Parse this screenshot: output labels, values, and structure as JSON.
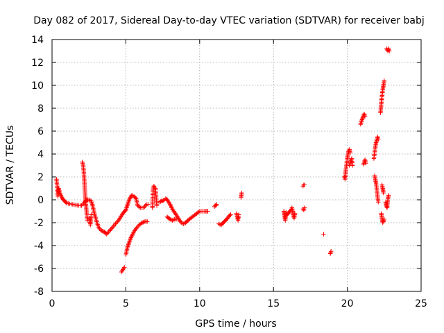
{
  "chart_data": {
    "type": "scatter",
    "title": "Day 082 of 2017, Sidereal Day-to-day VTEC variation (SDTVAR) for receiver babj",
    "xlabel": "GPS time / hours",
    "ylabel": "SDTVAR / TECUs",
    "xlim": [
      0,
      25
    ],
    "ylim": [
      -8,
      14
    ],
    "xticks": [
      0,
      5,
      10,
      15,
      20,
      25
    ],
    "yticks": [
      -8,
      -6,
      -4,
      -2,
      0,
      2,
      4,
      6,
      8,
      10,
      12,
      14
    ],
    "grid": true,
    "marker": "+",
    "series": [
      {
        "name": "SDTVAR",
        "color": "#ff0000",
        "segments": [
          [
            [
              0.3,
              1.8
            ],
            [
              0.35,
              1.2
            ],
            [
              0.4,
              0.3
            ],
            [
              0.45,
              1.0
            ],
            [
              0.5,
              0.7
            ],
            [
              0.6,
              0.4
            ],
            [
              0.7,
              0.1
            ],
            [
              0.85,
              -0.1
            ],
            [
              1.0,
              -0.3
            ],
            [
              1.2,
              -0.35
            ],
            [
              1.4,
              -0.4
            ],
            [
              1.6,
              -0.45
            ],
            [
              1.8,
              -0.5
            ],
            [
              2.0,
              -0.5
            ]
          ],
          [
            [
              2.05,
              3.3
            ],
            [
              2.1,
              3.1
            ],
            [
              2.15,
              2.5
            ],
            [
              2.2,
              1.4
            ],
            [
              2.25,
              0.3
            ],
            [
              2.3,
              -0.5
            ],
            [
              2.35,
              -1.2
            ],
            [
              2.4,
              -1.8
            ]
          ],
          [
            [
              2.1,
              -0.4
            ],
            [
              2.2,
              -0.2
            ],
            [
              2.35,
              0.0
            ],
            [
              2.5,
              0.0
            ],
            [
              2.65,
              -0.1
            ],
            [
              2.75,
              -0.5
            ],
            [
              2.85,
              -1.1
            ],
            [
              3.0,
              -1.8
            ],
            [
              3.15,
              -2.4
            ],
            [
              3.35,
              -2.7
            ],
            [
              3.55,
              -2.8
            ],
            [
              3.7,
              -3.0
            ],
            [
              3.9,
              -2.7
            ],
            [
              4.1,
              -2.4
            ],
            [
              4.3,
              -2.1
            ],
            [
              4.5,
              -1.8
            ],
            [
              4.7,
              -1.4
            ],
            [
              4.85,
              -1.1
            ],
            [
              5.0,
              -0.9
            ],
            [
              5.1,
              -0.5
            ],
            [
              5.2,
              -0.1
            ],
            [
              5.3,
              0.2
            ],
            [
              5.4,
              0.4
            ],
            [
              5.55,
              0.3
            ],
            [
              5.7,
              0.1
            ],
            [
              5.8,
              -0.5
            ],
            [
              6.0,
              -0.7
            ],
            [
              6.2,
              -0.7
            ],
            [
              6.4,
              -0.4
            ],
            [
              6.5,
              -0.4
            ]
          ],
          [
            [
              2.55,
              -1.6
            ],
            [
              2.6,
              -2.2
            ],
            [
              2.65,
              -1.3
            ]
          ],
          [
            [
              4.7,
              -6.3
            ],
            [
              4.8,
              -6.1
            ],
            [
              4.9,
              -5.9
            ]
          ],
          [
            [
              5.0,
              -4.8
            ],
            [
              5.1,
              -4.2
            ],
            [
              5.2,
              -3.8
            ],
            [
              5.35,
              -3.3
            ],
            [
              5.5,
              -2.9
            ],
            [
              5.7,
              -2.5
            ],
            [
              5.9,
              -2.2
            ],
            [
              6.1,
              -2.0
            ],
            [
              6.3,
              -1.9
            ],
            [
              6.45,
              -1.9
            ]
          ],
          [
            [
              6.8,
              -0.7
            ],
            [
              6.85,
              1.1
            ],
            [
              6.9,
              1.2
            ],
            [
              7.0,
              1.0
            ],
            [
              7.1,
              -0.5
            ]
          ],
          [
            [
              7.3,
              -0.2
            ],
            [
              7.4,
              -0.1
            ],
            [
              7.5,
              -0.1
            ],
            [
              7.6,
              0.0
            ]
          ],
          [
            [
              7.7,
              0.1
            ],
            [
              7.8,
              0.0
            ],
            [
              7.9,
              -0.2
            ],
            [
              8.0,
              -0.4
            ],
            [
              8.1,
              -0.7
            ],
            [
              8.2,
              -0.9
            ],
            [
              8.35,
              -1.2
            ],
            [
              8.5,
              -1.5
            ],
            [
              8.6,
              -1.7
            ],
            [
              8.75,
              -2.0
            ],
            [
              8.9,
              -2.1
            ],
            [
              9.05,
              -2.0
            ],
            [
              9.2,
              -1.8
            ],
            [
              9.4,
              -1.6
            ],
            [
              9.6,
              -1.4
            ],
            [
              9.8,
              -1.2
            ],
            [
              10.0,
              -1.0
            ],
            [
              10.2,
              -1.0
            ],
            [
              10.4,
              -1.0
            ],
            [
              10.55,
              -1.0
            ]
          ],
          [
            [
              7.8,
              -1.5
            ],
            [
              7.9,
              -1.6
            ],
            [
              8.0,
              -1.7
            ],
            [
              8.15,
              -1.8
            ],
            [
              8.3,
              -1.7
            ],
            [
              8.45,
              -1.7
            ]
          ],
          [
            [
              11.0,
              -0.6
            ],
            [
              11.05,
              -0.5
            ],
            [
              11.1,
              -0.5
            ],
            [
              11.15,
              -0.4
            ]
          ],
          [
            [
              11.3,
              -2.1
            ],
            [
              11.45,
              -2.2
            ],
            [
              11.6,
              -2.0
            ],
            [
              11.75,
              -1.8
            ],
            [
              11.9,
              -1.6
            ],
            [
              12.0,
              -1.4
            ],
            [
              12.1,
              -1.3
            ]
          ],
          [
            [
              12.5,
              -1.2
            ],
            [
              12.55,
              -1.5
            ],
            [
              12.6,
              -1.8
            ],
            [
              12.65,
              -1.3
            ]
          ],
          [
            [
              12.8,
              0.2
            ],
            [
              12.85,
              0.6
            ]
          ],
          [
            [
              15.7,
              -1.0
            ],
            [
              15.75,
              -1.4
            ],
            [
              15.8,
              -1.8
            ],
            [
              15.85,
              -1.1
            ],
            [
              15.9,
              -1.3
            ],
            [
              16.0,
              -1.2
            ],
            [
              16.1,
              -1.0
            ],
            [
              16.2,
              -0.9
            ],
            [
              16.25,
              -0.7
            ],
            [
              16.3,
              -1.0
            ],
            [
              16.35,
              -1.4
            ],
            [
              16.4,
              -1.6
            ],
            [
              16.45,
              -1.2
            ]
          ],
          [
            [
              17.0,
              -0.8
            ],
            [
              17.05,
              -0.9
            ],
            [
              17.1,
              -0.7
            ]
          ],
          [
            [
              17.0,
              1.2
            ],
            [
              17.05,
              1.3
            ],
            [
              17.1,
              1.3
            ]
          ],
          [
            [
              18.4,
              -3.0
            ]
          ],
          [
            [
              18.85,
              -4.7
            ],
            [
              18.9,
              -4.5
            ]
          ],
          [
            [
              19.8,
              2.0
            ],
            [
              19.85,
              1.8
            ],
            [
              19.9,
              2.6
            ],
            [
              19.95,
              3.1
            ],
            [
              20.0,
              3.6
            ],
            [
              20.05,
              4.0
            ],
            [
              20.1,
              4.3
            ],
            [
              20.15,
              4.4
            ],
            [
              20.2,
              4.1
            ]
          ],
          [
            [
              20.15,
              3.0
            ],
            [
              20.2,
              3.3
            ],
            [
              20.3,
              3.6
            ],
            [
              20.35,
              3.0
            ]
          ],
          [
            [
              20.9,
              6.6
            ],
            [
              20.95,
              6.8
            ],
            [
              21.0,
              7.0
            ],
            [
              21.05,
              7.2
            ],
            [
              21.1,
              7.4
            ],
            [
              21.15,
              7.5
            ],
            [
              21.2,
              7.3
            ]
          ],
          [
            [
              21.1,
              3.1
            ],
            [
              21.15,
              3.3
            ],
            [
              21.2,
              3.5
            ],
            [
              21.25,
              3.2
            ]
          ],
          [
            [
              21.8,
              3.6
            ],
            [
              21.85,
              4.1
            ],
            [
              21.9,
              4.6
            ],
            [
              21.95,
              5.0
            ],
            [
              22.0,
              5.2
            ],
            [
              22.05,
              5.5
            ],
            [
              22.1,
              5.3
            ]
          ],
          [
            [
              21.85,
              2.1
            ],
            [
              21.9,
              1.8
            ],
            [
              21.95,
              1.4
            ],
            [
              22.0,
              0.9
            ],
            [
              22.05,
              0.3
            ],
            [
              22.1,
              -0.2
            ]
          ],
          [
            [
              22.25,
              7.6
            ],
            [
              22.3,
              8.4
            ],
            [
              22.35,
              9.0
            ],
            [
              22.4,
              9.6
            ],
            [
              22.45,
              10.0
            ],
            [
              22.5,
              10.4
            ]
          ],
          [
            [
              22.35,
              1.3
            ],
            [
              22.4,
              1.0
            ],
            [
              22.45,
              0.6
            ]
          ],
          [
            [
              22.3,
              -1.2
            ],
            [
              22.35,
              -1.6
            ],
            [
              22.4,
              -2.0
            ],
            [
              22.45,
              -1.9
            ],
            [
              22.5,
              -1.7
            ]
          ],
          [
            [
              22.6,
              -0.2
            ],
            [
              22.65,
              -0.6
            ],
            [
              22.7,
              -0.7
            ],
            [
              22.75,
              0.1
            ],
            [
              22.8,
              0.4
            ]
          ],
          [
            [
              22.65,
              13.2
            ],
            [
              22.7,
              13.1
            ],
            [
              22.75,
              13.0
            ],
            [
              22.8,
              13.2
            ],
            [
              22.85,
              13.0
            ]
          ]
        ]
      }
    ]
  }
}
